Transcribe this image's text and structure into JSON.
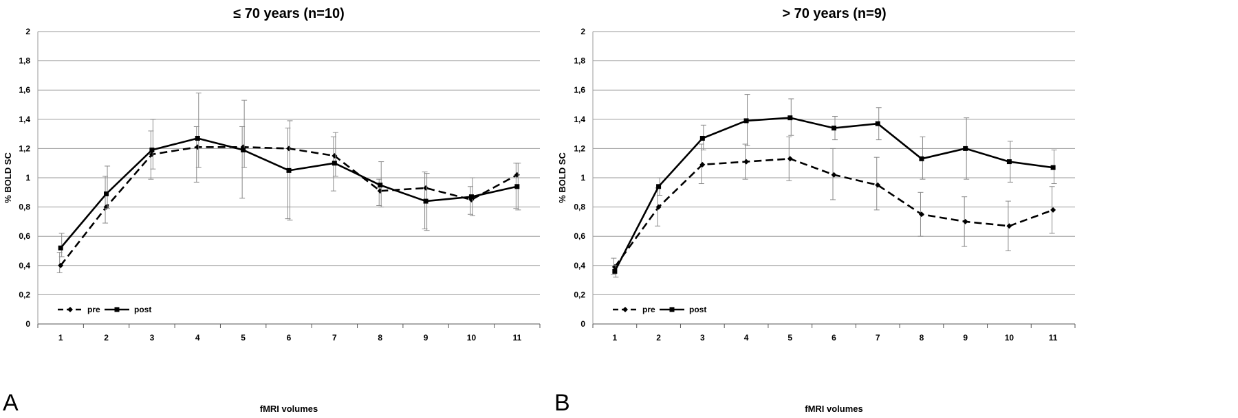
{
  "chart_data": [
    {
      "type": "line",
      "panel_label": "A",
      "title": "≤ 70 years (n=10)",
      "xlabel": "fMRI volumes",
      "ylabel": "% BOLD  SC",
      "categories": [
        "1",
        "2",
        "3",
        "4",
        "5",
        "6",
        "7",
        "8",
        "9",
        "10",
        "11"
      ],
      "ylim": [
        0,
        2
      ],
      "yticks": [
        "0",
        "0,2",
        "0,4",
        "0,6",
        "0,8",
        "1",
        "1,2",
        "1,4",
        "1,6",
        "1,8",
        "2"
      ],
      "grid": true,
      "legend": "bottom-left",
      "series": [
        {
          "name": "pre",
          "style": "dashed",
          "marker": "diamond",
          "values": [
            0.4,
            0.8,
            1.16,
            1.21,
            1.21,
            1.2,
            1.15,
            0.91,
            0.93,
            0.85,
            1.02
          ],
          "err_low": [
            0.35,
            0.69,
            0.99,
            0.97,
            0.86,
            0.72,
            0.91,
            0.81,
            0.65,
            0.75,
            0.79
          ],
          "err_high": [
            0.49,
            1.01,
            1.32,
            1.35,
            1.35,
            1.34,
            1.28,
            0.99,
            1.04,
            0.94,
            1.1
          ]
        },
        {
          "name": "post",
          "style": "solid",
          "marker": "square",
          "values": [
            0.52,
            0.89,
            1.19,
            1.27,
            1.19,
            1.05,
            1.1,
            0.95,
            0.84,
            0.87,
            0.94
          ],
          "err_low": [
            0.46,
            0.79,
            1.06,
            1.07,
            1.07,
            0.71,
            1.01,
            0.8,
            0.64,
            0.74,
            0.78
          ],
          "err_high": [
            0.62,
            1.08,
            1.4,
            1.58,
            1.53,
            1.39,
            1.31,
            1.11,
            1.03,
            1.0,
            1.1
          ]
        }
      ]
    },
    {
      "type": "line",
      "panel_label": "B",
      "title": "> 70 years (n=9)",
      "xlabel": "fMRI volumes",
      "ylabel": "% BOLD  SC",
      "categories": [
        "1",
        "2",
        "3",
        "4",
        "5",
        "6",
        "7",
        "8",
        "9",
        "10",
        "11"
      ],
      "ylim": [
        0,
        2
      ],
      "yticks": [
        "0",
        "0,2",
        "0,4",
        "0,6",
        "0,8",
        "1",
        "1,2",
        "1,4",
        "1,6",
        "1,8",
        "2"
      ],
      "grid": true,
      "legend": "bottom-left",
      "series": [
        {
          "name": "pre",
          "style": "dashed",
          "marker": "diamond",
          "values": [
            0.39,
            0.8,
            1.09,
            1.11,
            1.13,
            1.02,
            0.95,
            0.75,
            0.7,
            0.67,
            0.78
          ],
          "err_low": [
            0.34,
            0.67,
            0.96,
            0.99,
            0.98,
            0.85,
            0.78,
            0.6,
            0.53,
            0.5,
            0.62
          ],
          "err_high": [
            0.45,
            0.93,
            1.23,
            1.23,
            1.28,
            1.2,
            1.14,
            0.9,
            0.87,
            0.84,
            0.94
          ]
        },
        {
          "name": "post",
          "style": "solid",
          "marker": "square",
          "values": [
            0.36,
            0.94,
            1.27,
            1.39,
            1.41,
            1.34,
            1.37,
            1.13,
            1.2,
            1.11,
            1.07
          ],
          "err_low": [
            0.32,
            0.88,
            1.19,
            1.22,
            1.29,
            1.26,
            1.26,
            0.99,
            0.99,
            0.97,
            0.96
          ],
          "err_high": [
            0.4,
            1.0,
            1.36,
            1.57,
            1.54,
            1.42,
            1.48,
            1.28,
            1.41,
            1.25,
            1.19
          ]
        }
      ]
    }
  ]
}
